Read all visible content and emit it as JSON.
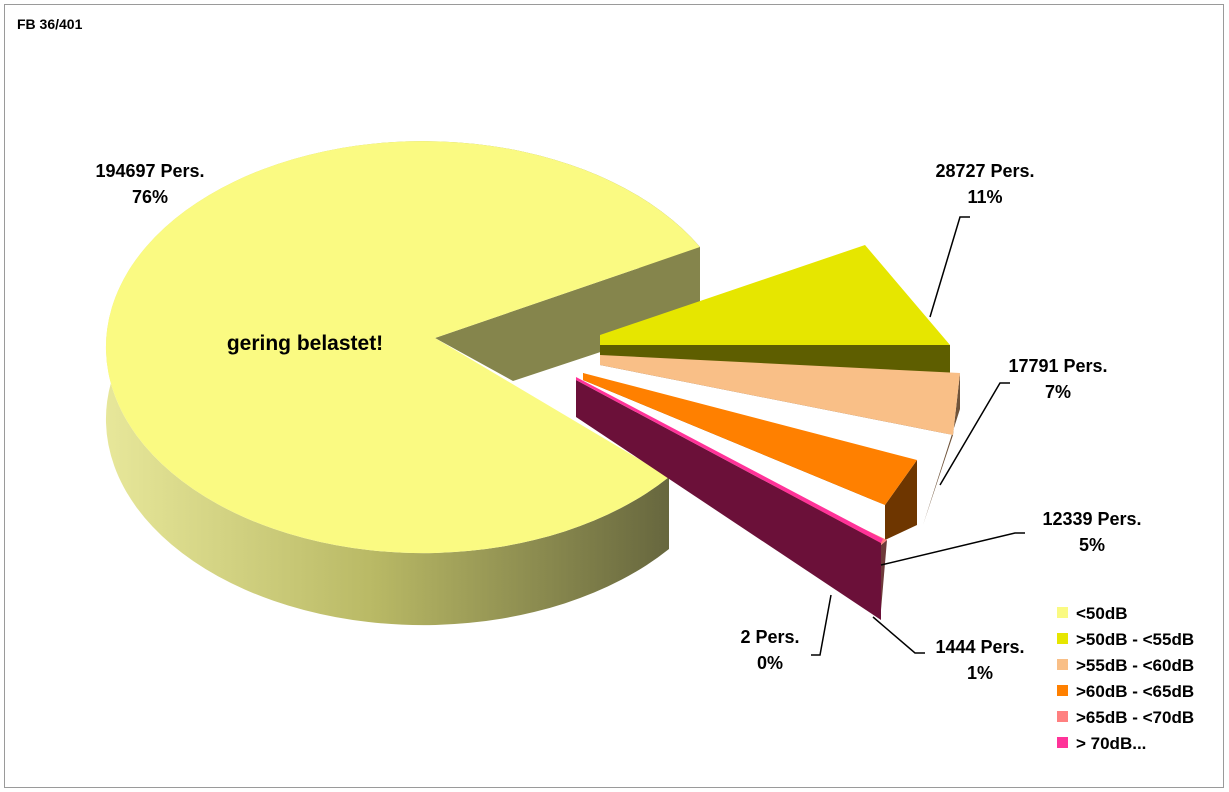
{
  "figure_id": "FB 36/401",
  "center_annotation": "gering belastet!",
  "chart_data": {
    "type": "pie",
    "style": "3d exploded pie",
    "categories": [
      "<50dB",
      ">50dB - <55dB",
      ">55dB - <60dB",
      ">60dB - <65dB",
      ">65dB - <70dB",
      "> 70dB..."
    ],
    "values": [
      194697,
      28727,
      17791,
      12339,
      1444,
      2
    ],
    "data_labels": [
      {
        "count": "194697 Pers.",
        "percent": "76%"
      },
      {
        "count": "28727 Pers.",
        "percent": "11%"
      },
      {
        "count": "17791 Pers.",
        "percent": "7%"
      },
      {
        "count": "12339 Pers.",
        "percent": "5%"
      },
      {
        "count": "1444 Pers.",
        "percent": "1%"
      },
      {
        "count": "2 Pers.",
        "percent": "0%"
      }
    ],
    "colors": [
      "#FAFA82",
      "#E6E600",
      "#F9BF87",
      "#FF8000",
      "#FF8080",
      "#FF3399"
    ],
    "side_colors": [
      "#6E6E46",
      "#5E5E00",
      "#6F533A",
      "#6E3600",
      "#6E3A3A",
      "#6B1039"
    ],
    "legend_position": "bottom-right"
  }
}
